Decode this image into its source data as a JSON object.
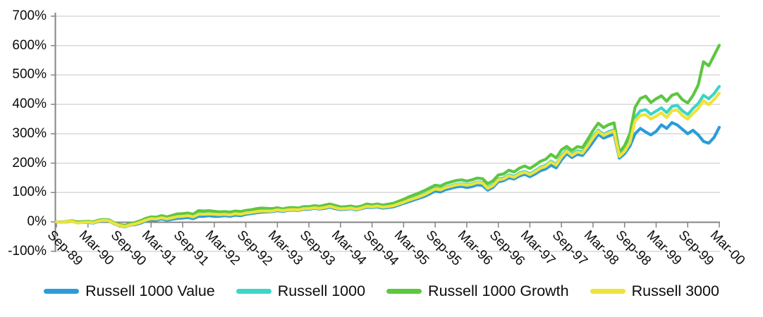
{
  "chart_data": {
    "type": "line",
    "title": "",
    "xlabel": "",
    "ylabel": "",
    "y_axis": {
      "min": -100,
      "max": 700,
      "step": 100,
      "format": "percent"
    },
    "y_tick_labels": [
      "700%",
      "600%",
      "500%",
      "400%",
      "300%",
      "200%",
      "100%",
      "0%",
      "-100%"
    ],
    "y_tick_values": [
      700,
      600,
      500,
      400,
      300,
      200,
      100,
      0,
      -100
    ],
    "gridlines": "horizontal",
    "legend_position": "bottom",
    "x_tick_labels": [
      "Sep-89",
      "Mar-90",
      "Sep-90",
      "Mar-91",
      "Sep-91",
      "Mar-92",
      "Sep-92",
      "Mar-93",
      "Sep-93",
      "Mar-94",
      "Sep-94",
      "Mar-95",
      "Sep-95",
      "Mar-96",
      "Sep-96",
      "Mar-97",
      "Sep-97",
      "Mar-98",
      "Sep-98",
      "Mar-99",
      "Sep-99",
      "Mar-00"
    ],
    "x_unit": "months, Sep-1989 through Mar-2000, monthly data (values in cumulative % return)",
    "series": [
      {
        "name": "Russell 1000 Value",
        "color": "#2B9CD9",
        "values": [
          0,
          -1,
          0,
          2,
          -3,
          -2,
          -2,
          -4,
          2,
          4,
          3,
          -7,
          -13,
          -17,
          -11,
          -9,
          -4,
          3,
          7,
          6,
          10,
          6,
          9,
          12,
          13,
          15,
          11,
          19,
          19,
          21,
          19,
          19,
          21,
          19,
          23,
          21,
          26,
          28,
          31,
          33,
          34,
          35,
          38,
          36,
          39,
          40,
          39,
          43,
          43,
          46,
          44,
          46,
          50,
          45,
          42,
          43,
          45,
          41,
          45,
          50,
          49,
          51,
          47,
          49,
          51,
          57,
          63,
          69,
          75,
          81,
          87,
          96,
          105,
          102,
          110,
          114,
          119,
          121,
          117,
          120,
          126,
          124,
          108,
          118,
          137,
          140,
          150,
          146,
          156,
          162,
          154,
          163,
          174,
          180,
          193,
          184,
          211,
          232,
          219,
          230,
          226,
          248,
          272,
          298,
          285,
          292,
          300,
          217,
          232,
          258,
          300,
          318,
          306,
          296,
          308,
          330,
          318,
          338,
          330,
          315,
          300,
          312,
          296,
          274,
          268,
          287,
          322
        ]
      },
      {
        "name": "Russell 1000",
        "color": "#3CD5C8",
        "values": [
          0,
          -1,
          1,
          3,
          -2,
          -1,
          0,
          -2,
          4,
          6,
          5,
          -5,
          -11,
          -15,
          -9,
          -6,
          0,
          7,
          12,
          11,
          15,
          11,
          15,
          19,
          20,
          22,
          18,
          28,
          27,
          28,
          27,
          26,
          27,
          25,
          29,
          27,
          31,
          33,
          36,
          38,
          38,
          38,
          42,
          39,
          42,
          43,
          42,
          46,
          46,
          49,
          47,
          50,
          54,
          49,
          45,
          46,
          48,
          44,
          48,
          54,
          52,
          55,
          51,
          53,
          56,
          62,
          69,
          76,
          82,
          88,
          95,
          105,
          114,
          111,
          119,
          123,
          128,
          130,
          127,
          130,
          136,
          134,
          117,
          127,
          146,
          149,
          160,
          155,
          166,
          172,
          164,
          174,
          186,
          192,
          207,
          196,
          225,
          245,
          230,
          242,
          238,
          263,
          290,
          312,
          298,
          307,
          313,
          226,
          244,
          276,
          356,
          378,
          382,
          366,
          377,
          388,
          372,
          393,
          397,
          378,
          365,
          386,
          403,
          431,
          419,
          436,
          461
        ]
      },
      {
        "name": "Russell 1000 Growth",
        "color": "#5CC740",
        "values": [
          0,
          -1,
          2,
          4,
          0,
          1,
          2,
          0,
          6,
          8,
          7,
          -3,
          -9,
          -12,
          -6,
          -2,
          4,
          12,
          17,
          16,
          21,
          17,
          22,
          27,
          28,
          30,
          26,
          38,
          37,
          38,
          36,
          34,
          35,
          33,
          37,
          35,
          39,
          41,
          45,
          47,
          46,
          45,
          48,
          44,
          48,
          49,
          47,
          52,
          52,
          55,
          53,
          57,
          61,
          56,
          51,
          52,
          54,
          50,
          54,
          61,
          58,
          61,
          57,
          60,
          63,
          70,
          77,
          85,
          92,
          99,
          107,
          116,
          125,
          122,
          131,
          136,
          141,
          143,
          139,
          143,
          149,
          147,
          130,
          140,
          160,
          163,
          176,
          170,
          183,
          190,
          182,
          193,
          206,
          213,
          230,
          218,
          245,
          257,
          243,
          256,
          253,
          281,
          311,
          336,
          321,
          331,
          337,
          237,
          259,
          300,
          390,
          420,
          428,
          406,
          419,
          429,
          411,
          431,
          437,
          416,
          405,
          430,
          466,
          545,
          531,
          566,
          601
        ]
      },
      {
        "name": "Russell 3000",
        "color": "#EFE23C",
        "values": [
          0,
          -2,
          1,
          2,
          -4,
          -2,
          -1,
          -3,
          3,
          5,
          4,
          -6,
          -12,
          -16,
          -10,
          -7,
          -1,
          6,
          11,
          10,
          14,
          10,
          14,
          18,
          19,
          21,
          17,
          26,
          26,
          27,
          26,
          25,
          26,
          24,
          28,
          26,
          30,
          32,
          35,
          37,
          37,
          37,
          41,
          38,
          41,
          42,
          41,
          45,
          45,
          48,
          46,
          49,
          53,
          48,
          44,
          45,
          47,
          43,
          47,
          53,
          51,
          54,
          50,
          52,
          55,
          61,
          67,
          74,
          80,
          86,
          93,
          103,
          112,
          109,
          117,
          121,
          126,
          128,
          125,
          128,
          134,
          132,
          114,
          124,
          143,
          146,
          157,
          152,
          163,
          169,
          161,
          171,
          183,
          189,
          204,
          193,
          221,
          241,
          226,
          238,
          234,
          259,
          286,
          308,
          294,
          303,
          309,
          223,
          240,
          270,
          344,
          362,
          365,
          350,
          360,
          371,
          355,
          378,
          381,
          362,
          350,
          369,
          386,
          413,
          399,
          416,
          438
        ]
      }
    ],
    "style": {
      "gridline_color": "#D8D8D8",
      "axis_color": "#848484",
      "text_color": "#0c0c0c",
      "background": "#ffffff",
      "line_width": 4.2
    }
  }
}
